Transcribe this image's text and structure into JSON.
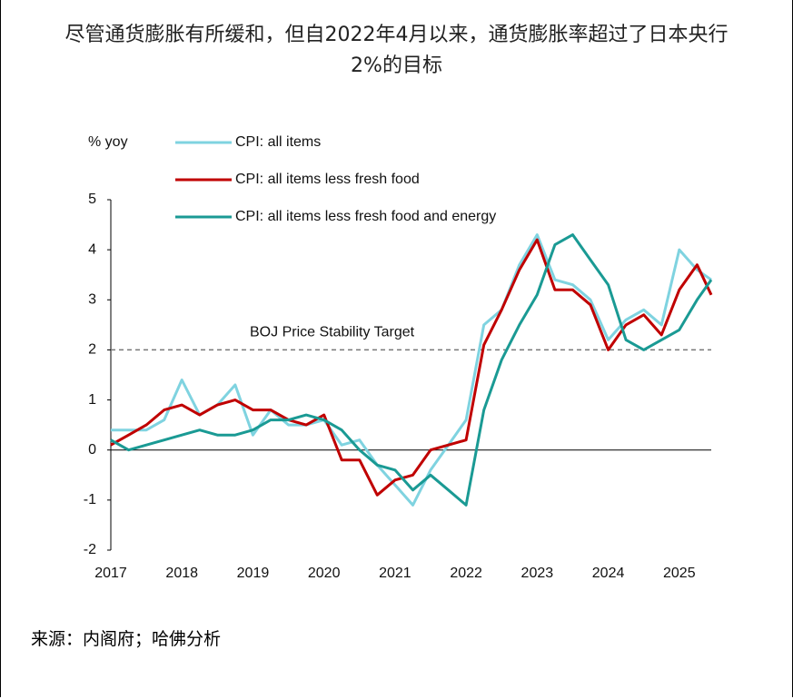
{
  "chart_data": {
    "type": "line",
    "title": "尽管通货膨胀有所缓和，但自2022年4月以来，通货膨胀率超过了日本央行2%的目标",
    "y_label": "% yoy",
    "source": "来源：内阁府；哈佛分析",
    "x": [
      2017.0,
      2017.25,
      2017.5,
      2017.75,
      2018.0,
      2018.25,
      2018.5,
      2018.75,
      2019.0,
      2019.25,
      2019.5,
      2019.75,
      2020.0,
      2020.25,
      2020.5,
      2020.75,
      2021.0,
      2021.25,
      2021.5,
      2021.75,
      2022.0,
      2022.25,
      2022.5,
      2022.75,
      2023.0,
      2023.25,
      2023.5,
      2023.75,
      2024.0,
      2024.25,
      2024.5,
      2024.75,
      2025.0,
      2025.25,
      2025.45
    ],
    "series": [
      {
        "name": "CPI: all items",
        "color": "#7fd3e0",
        "values": [
          0.4,
          0.4,
          0.4,
          0.6,
          1.4,
          0.7,
          0.9,
          1.3,
          0.3,
          0.8,
          0.5,
          0.5,
          0.6,
          0.1,
          0.2,
          -0.3,
          -0.7,
          -1.1,
          -0.4,
          0.1,
          0.6,
          2.5,
          2.8,
          3.7,
          4.3,
          3.4,
          3.3,
          3.0,
          2.2,
          2.6,
          2.8,
          2.5,
          4.0,
          3.6,
          3.4
        ]
      },
      {
        "name": "CPI: all items less fresh food",
        "color": "#c00000",
        "values": [
          0.1,
          0.3,
          0.5,
          0.8,
          0.9,
          0.7,
          0.9,
          1.0,
          0.8,
          0.8,
          0.6,
          0.5,
          0.7,
          -0.2,
          -0.2,
          -0.9,
          -0.6,
          -0.5,
          0.0,
          0.1,
          0.2,
          2.1,
          2.8,
          3.6,
          4.2,
          3.2,
          3.2,
          2.9,
          2.0,
          2.5,
          2.7,
          2.3,
          3.2,
          3.7,
          3.1
        ]
      },
      {
        "name": "CPI: all items less fresh food and energy",
        "color": "#1a9a94",
        "values": [
          0.2,
          0.0,
          0.1,
          0.2,
          0.3,
          0.4,
          0.3,
          0.3,
          0.4,
          0.6,
          0.6,
          0.7,
          0.6,
          0.4,
          0.0,
          -0.3,
          -0.4,
          -0.8,
          -0.5,
          -0.8,
          -1.1,
          0.8,
          1.8,
          2.5,
          3.1,
          4.1,
          4.3,
          3.8,
          3.3,
          2.2,
          2.0,
          2.2,
          2.4,
          3.0,
          3.4
        ]
      }
    ],
    "target": {
      "value": 2,
      "label": "BOJ Price Stability Target"
    },
    "xlim": [
      2017,
      2025.45
    ],
    "xticks": [
      2017,
      2018,
      2019,
      2020,
      2021,
      2022,
      2023,
      2024,
      2025
    ],
    "ylim": [
      -2,
      5
    ],
    "yticks": [
      -2,
      -1,
      0,
      1,
      2,
      3,
      4,
      5
    ]
  }
}
